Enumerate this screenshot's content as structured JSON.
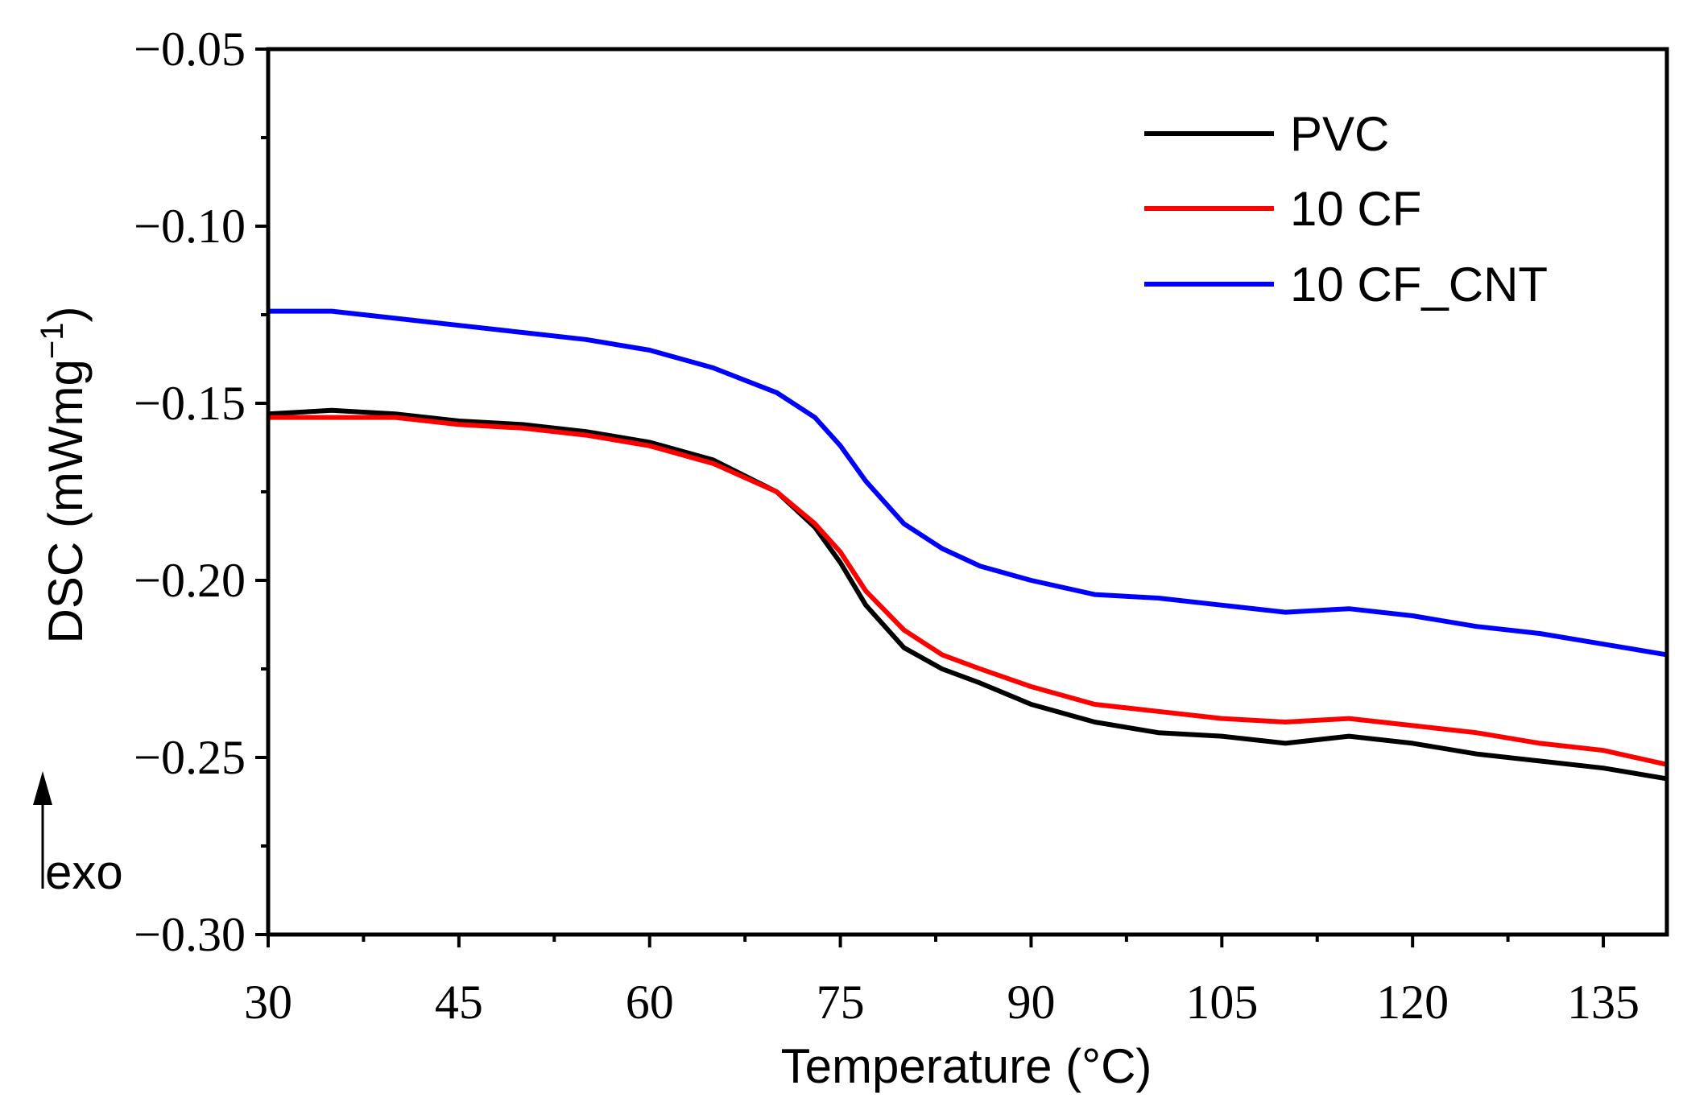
{
  "chart_data": {
    "type": "line",
    "title": "",
    "xlabel": "Temperature (°C)",
    "ylabel": "DSC (mWmg",
    "ylabel_sup": "−1",
    "ylabel_close": ")",
    "xlim": [
      30,
      140
    ],
    "ylim": [
      -0.3,
      -0.05
    ],
    "xticks": [
      30,
      45,
      60,
      75,
      90,
      105,
      120,
      135
    ],
    "xtick_labels": [
      "30",
      "45",
      "60",
      "75",
      "90",
      "105",
      "120",
      "135"
    ],
    "yticks": [
      -0.05,
      -0.1,
      -0.15,
      -0.2,
      -0.25,
      -0.3
    ],
    "ytick_labels": [
      "−0.05",
      "−0.10",
      "−0.15",
      "−0.20",
      "−0.25",
      "−0.30"
    ],
    "legend_position": "top-right",
    "annotation": "exo",
    "x": [
      30,
      35,
      40,
      45,
      50,
      55,
      60,
      65,
      70,
      73,
      75,
      77,
      80,
      83,
      86,
      90,
      95,
      100,
      105,
      110,
      115,
      120,
      125,
      130,
      135,
      140
    ],
    "series": [
      {
        "name": "PVC",
        "color": "#000000",
        "values": [
          -0.153,
          -0.152,
          -0.153,
          -0.155,
          -0.156,
          -0.158,
          -0.161,
          -0.166,
          -0.175,
          -0.185,
          -0.195,
          -0.207,
          -0.219,
          -0.225,
          -0.229,
          -0.235,
          -0.24,
          -0.243,
          -0.244,
          -0.246,
          -0.244,
          -0.246,
          -0.249,
          -0.251,
          -0.253,
          -0.256
        ]
      },
      {
        "name": "10 CF",
        "color": "#ff0000",
        "values": [
          -0.154,
          -0.154,
          -0.154,
          -0.156,
          -0.157,
          -0.159,
          -0.162,
          -0.167,
          -0.175,
          -0.184,
          -0.192,
          -0.203,
          -0.214,
          -0.221,
          -0.225,
          -0.23,
          -0.235,
          -0.237,
          -0.239,
          -0.24,
          -0.239,
          -0.241,
          -0.243,
          -0.246,
          -0.248,
          -0.252
        ]
      },
      {
        "name": "10 CF_CNT",
        "color": "#0000ff",
        "values": [
          -0.124,
          -0.124,
          -0.126,
          -0.128,
          -0.13,
          -0.132,
          -0.135,
          -0.14,
          -0.147,
          -0.154,
          -0.162,
          -0.172,
          -0.184,
          -0.191,
          -0.196,
          -0.2,
          -0.204,
          -0.205,
          -0.207,
          -0.209,
          -0.208,
          -0.21,
          -0.213,
          -0.215,
          -0.218,
          -0.221
        ]
      }
    ]
  }
}
